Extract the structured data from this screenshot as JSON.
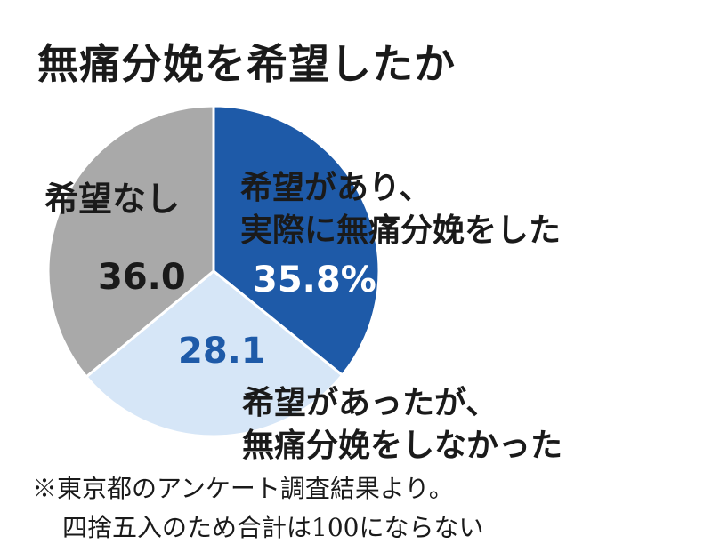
{
  "chart_data": {
    "type": "pie",
    "title": "無痛分娩を希望したか",
    "slices": [
      {
        "label_lines": [
          "希望があり、",
          "実際に無痛分娩をした"
        ],
        "value": 35.8,
        "value_label": "35.8%",
        "color": "#1e5aa8"
      },
      {
        "label_lines": [
          "希望があったが、",
          "無痛分娩をしなかった"
        ],
        "value": 28.1,
        "value_label": "28.1",
        "color": "#d6e6f7"
      },
      {
        "label_lines": [
          "希望なし"
        ],
        "value": 36.0,
        "value_label": "36.0",
        "color": "#a9a9a9"
      }
    ],
    "start_angle_deg": 0,
    "direction": "clockwise"
  },
  "notes": [
    "※東京都のアンケート調査結果より。",
    "四捨五入のため合計は100にならない"
  ]
}
